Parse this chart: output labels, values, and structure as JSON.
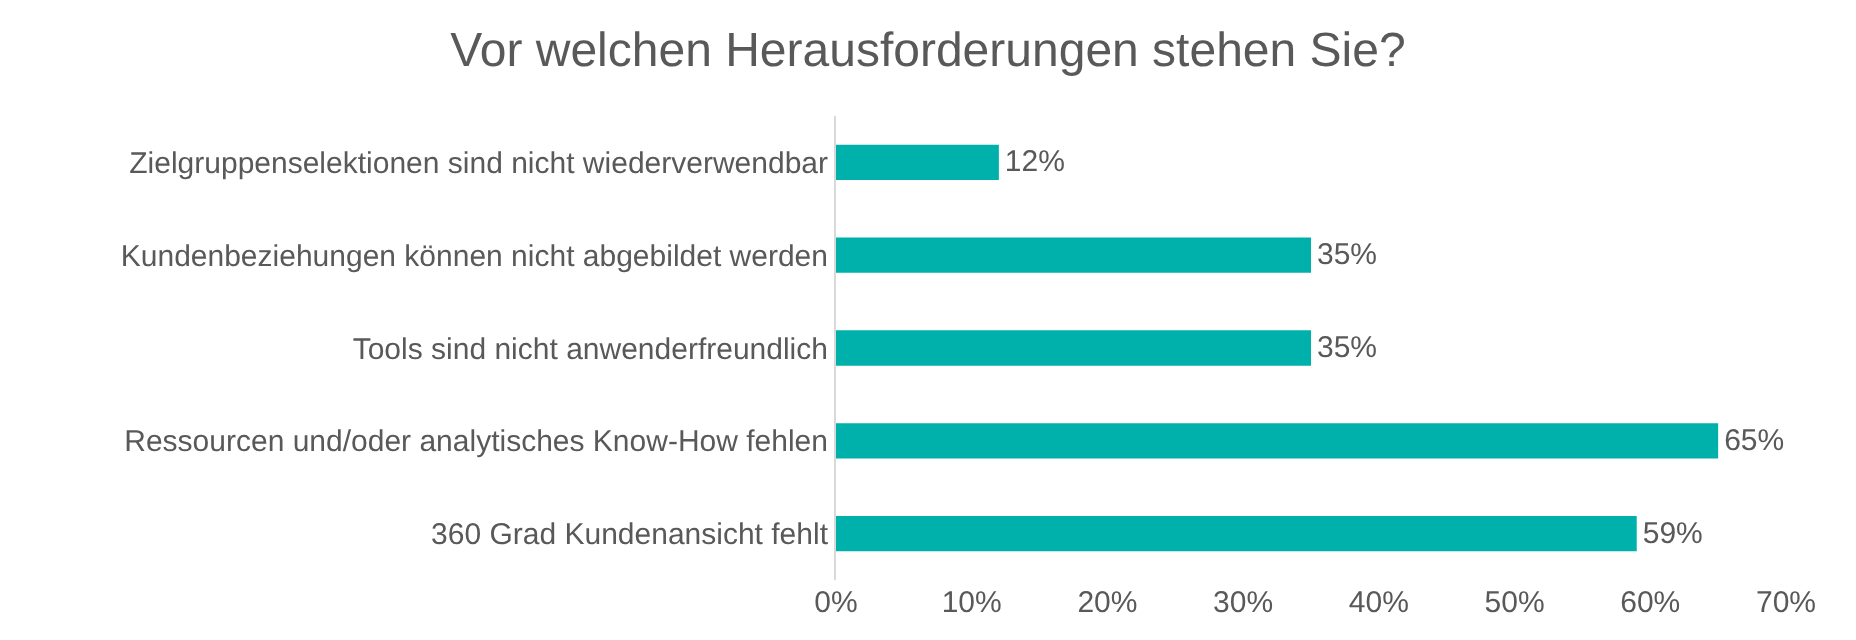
{
  "chart_data": {
    "type": "bar",
    "orientation": "horizontal",
    "title": "Vor welchen Herausforderungen stehen Sie?",
    "categories": [
      "Zielgruppenselektionen sind nicht wiederverwendbar",
      "Kundenbeziehungen können nicht abgebildet werden",
      "Tools sind nicht anwenderfreundlich",
      "Ressourcen und/oder analytisches Know-How fehlen",
      "360 Grad Kundenansicht fehlt"
    ],
    "values": [
      12,
      35,
      35,
      65,
      59
    ],
    "value_labels": [
      "12%",
      "35%",
      "35%",
      "65%",
      "59%"
    ],
    "color": "#00b0aa",
    "xlim": [
      0,
      70
    ],
    "xticks": [
      {
        "value": 0,
        "label": "0%"
      },
      {
        "value": 10,
        "label": "10%"
      },
      {
        "value": 20,
        "label": "20%"
      },
      {
        "value": 30,
        "label": "30%"
      },
      {
        "value": 40,
        "label": "40%"
      },
      {
        "value": 50,
        "label": "50%"
      },
      {
        "value": 60,
        "label": "60%"
      },
      {
        "value": 70,
        "label": "70%"
      }
    ],
    "grid": false,
    "legend": false
  }
}
